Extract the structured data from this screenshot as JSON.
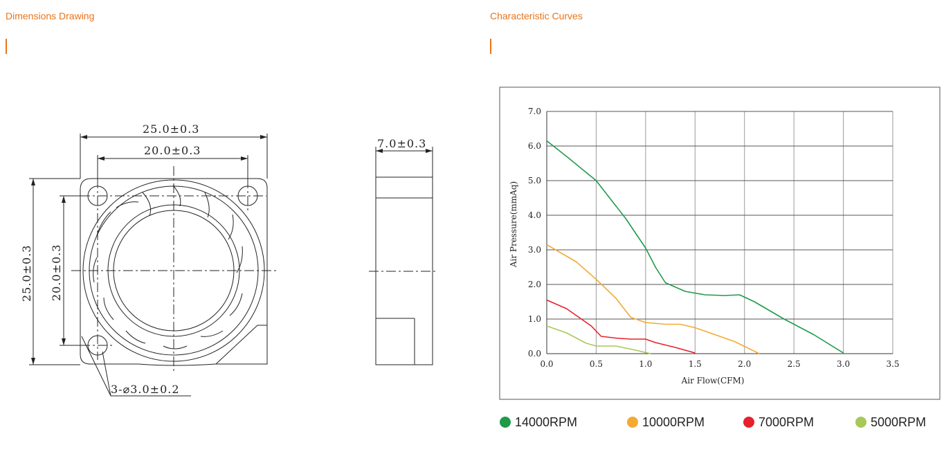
{
  "sections": {
    "dimensions_title": "Dimensions Drawing",
    "curves_title": "Characteristic Curves"
  },
  "drawing": {
    "width_overall": "25.0±0.3",
    "width_holes": "20.0±0.3",
    "height_overall": "25.0±0.3",
    "height_holes": "20.0±0.3",
    "depth": "7.0±0.3",
    "hole_note": "3-⌀3.0±0.2"
  },
  "chart_data": {
    "type": "line",
    "xlabel": "Air Flow(CFM)",
    "ylabel": "Air Pressure(mmAq)",
    "xlim": [
      0,
      3.5
    ],
    "ylim": [
      0,
      7
    ],
    "x_ticks": [
      "0.0",
      "0.5",
      "1.0",
      "1.5",
      "2.0",
      "2.5",
      "3.0",
      "3.5"
    ],
    "y_ticks": [
      "0.0",
      "1.0",
      "2.0",
      "3.0",
      "4.0",
      "5.0",
      "6.0",
      "7.0"
    ],
    "grid": true,
    "legend_position": "bottom",
    "series": [
      {
        "name": "14000RPM",
        "color": "#1f9a48",
        "points": [
          [
            0,
            6.15
          ],
          [
            0.2,
            5.7
          ],
          [
            0.5,
            5.0
          ],
          [
            0.8,
            3.9
          ],
          [
            1.0,
            3.05
          ],
          [
            1.1,
            2.5
          ],
          [
            1.2,
            2.05
          ],
          [
            1.4,
            1.8
          ],
          [
            1.6,
            1.7
          ],
          [
            1.8,
            1.68
          ],
          [
            1.95,
            1.7
          ],
          [
            2.1,
            1.5
          ],
          [
            2.4,
            1.0
          ],
          [
            2.7,
            0.55
          ],
          [
            3.0,
            0.02
          ]
        ]
      },
      {
        "name": "10000RPM",
        "color": "#f3aa32",
        "points": [
          [
            0,
            3.15
          ],
          [
            0.3,
            2.65
          ],
          [
            0.5,
            2.15
          ],
          [
            0.7,
            1.6
          ],
          [
            0.85,
            1.05
          ],
          [
            1.0,
            0.9
          ],
          [
            1.2,
            0.85
          ],
          [
            1.35,
            0.85
          ],
          [
            1.5,
            0.75
          ],
          [
            1.7,
            0.55
          ],
          [
            1.9,
            0.35
          ],
          [
            2.15,
            0.0
          ]
        ]
      },
      {
        "name": "7000RPM",
        "color": "#e8202a",
        "points": [
          [
            0,
            1.55
          ],
          [
            0.2,
            1.3
          ],
          [
            0.45,
            0.8
          ],
          [
            0.55,
            0.5
          ],
          [
            0.7,
            0.45
          ],
          [
            0.85,
            0.42
          ],
          [
            1.0,
            0.42
          ],
          [
            1.1,
            0.32
          ],
          [
            1.3,
            0.18
          ],
          [
            1.5,
            0.02
          ]
        ]
      },
      {
        "name": "5000RPM",
        "color": "#a8c85a",
        "points": [
          [
            0,
            0.8
          ],
          [
            0.2,
            0.6
          ],
          [
            0.4,
            0.3
          ],
          [
            0.5,
            0.22
          ],
          [
            0.7,
            0.22
          ],
          [
            0.9,
            0.1
          ],
          [
            1.05,
            0.0
          ]
        ]
      }
    ]
  }
}
